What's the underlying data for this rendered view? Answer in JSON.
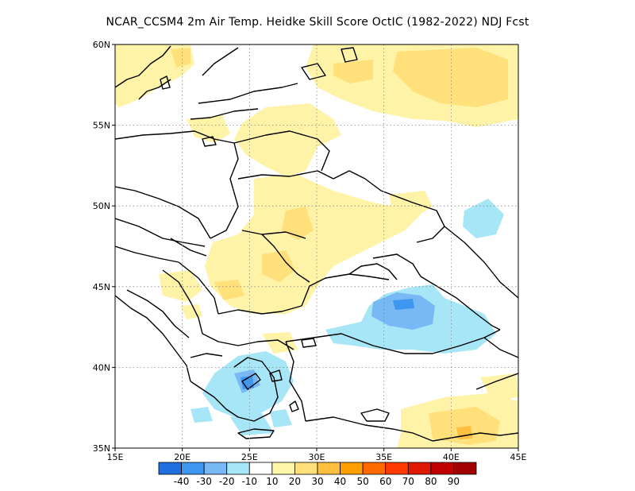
{
  "title": "NCAR_CCSM4  2m Air Temp. Heidke Skill Score OctIC (1982-2022) NDJ Fcst",
  "map": {
    "lon_labels": [
      "15E",
      "20E",
      "25E",
      "30E",
      "35E",
      "40E",
      "45E"
    ],
    "lat_labels": [
      "35N",
      "40N",
      "45N",
      "50N",
      "55N",
      "60N"
    ],
    "extent": {
      "lon": [
        15,
        45
      ],
      "lat": [
        35,
        60
      ]
    },
    "gridlines": "dotted"
  },
  "colorbar": {
    "colors": [
      "#1f6fe0",
      "#3d97f0",
      "#78b8f5",
      "#a6e6f6",
      "#ffffff",
      "#fff7a8",
      "#ffe07a",
      "#ffc040",
      "#ffa000",
      "#ff6a00",
      "#ff3a00",
      "#e01800",
      "#c00000",
      "#a00000"
    ],
    "labels": [
      "-40",
      "-30",
      "-20",
      "-10",
      "10",
      "20",
      "30",
      "40",
      "50",
      "60",
      "70",
      "80",
      "90"
    ]
  },
  "palette": {
    "light_yellow": "#fff3a8",
    "yellow": "#ffe07a",
    "orange": "#ffc040",
    "light_blue": "#a6e6f6",
    "blue": "#78b8f5",
    "dark_blue": "#3d97f0"
  }
}
